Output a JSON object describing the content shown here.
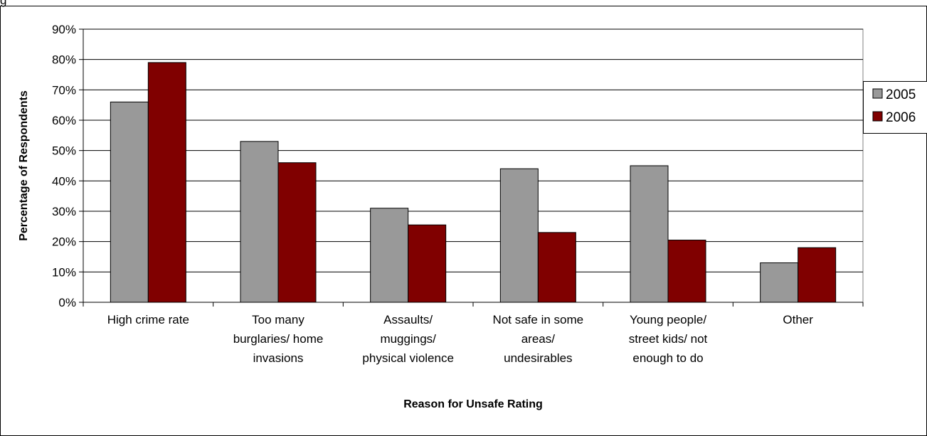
{
  "chart_data": {
    "type": "bar",
    "title": "",
    "xlabel": "Reason for Unsafe Rating",
    "ylabel": "Percentage of Respondents",
    "ylim": [
      0,
      90
    ],
    "yticks": [
      "0%",
      "10%",
      "20%",
      "30%",
      "40%",
      "50%",
      "60%",
      "70%",
      "80%",
      "90%"
    ],
    "categories": [
      [
        "High crime rate"
      ],
      [
        "Too many",
        "burglaries/ home",
        "invasions"
      ],
      [
        "Assaults/",
        "muggings/",
        "physical violence"
      ],
      [
        "Not safe in some",
        "areas/",
        "undesirables"
      ],
      [
        "Young people/",
        "street kids/ not",
        "enough to do"
      ],
      [
        "Other"
      ]
    ],
    "series": [
      {
        "name": "2005",
        "color": "#999999",
        "values": [
          66,
          53,
          31,
          44,
          45,
          13
        ]
      },
      {
        "name": "2006",
        "color": "#800000",
        "values": [
          79,
          46,
          25.5,
          23,
          20.5,
          18
        ]
      }
    ],
    "grid": true,
    "legend_position": "right",
    "top_caption": "g"
  }
}
